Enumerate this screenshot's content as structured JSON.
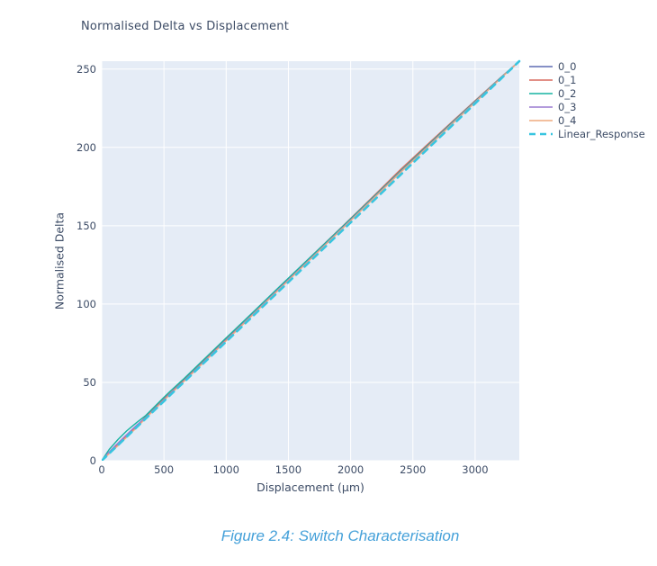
{
  "page": {
    "background": "#ffffff"
  },
  "chart": {
    "title": "Normalised Delta vs Displacement",
    "title_color": "#3d4c66",
    "tick_color": "#3d4c66",
    "plot_bg": "#e5ecf6",
    "grid_color": "#ffffff",
    "xlabel": "Displacement (µm)",
    "ylabel": "Normalised Delta"
  },
  "caption": {
    "text": "Figure 2.4: Switch Characterisation",
    "color": "#44a0d9"
  },
  "chart_data": {
    "type": "line",
    "title": "Normalised Delta vs Displacement",
    "xlabel": "Displacement (µm)",
    "ylabel": "Normalised Delta",
    "xlim": [
      0,
      3355
    ],
    "ylim": [
      0,
      255
    ],
    "xticks": [
      0,
      500,
      1000,
      1500,
      2000,
      2500,
      3000
    ],
    "yticks": [
      0,
      50,
      100,
      150,
      200,
      250
    ],
    "grid": true,
    "legend_position": "top-right-outside",
    "x": [
      0,
      60,
      130,
      200,
      280,
      350,
      500,
      560,
      650,
      800,
      1000,
      1200,
      1400,
      1600,
      1800,
      2000,
      2200,
      2400,
      2600,
      2800,
      3000,
      3200,
      3355
    ],
    "series": [
      {
        "name": "0_0",
        "color": "#5f6bb3",
        "dash": "solid",
        "width": 1.4,
        "values": [
          0,
          5.2,
          10.8,
          16.2,
          22.3,
          27.4,
          39.2,
          43.4,
          50.3,
          61.8,
          77.2,
          92.6,
          108.0,
          123.3,
          138.5,
          153.8,
          169.2,
          184.6,
          199.6,
          214.4,
          229.2,
          243.9,
          255
        ]
      },
      {
        "name": "0_1",
        "color": "#d96a5e",
        "dash": "solid",
        "width": 1.4,
        "values": [
          0,
          4.8,
          10.2,
          15.8,
          22.0,
          27.8,
          39.6,
          43.8,
          50.8,
          62.2,
          77.6,
          93.1,
          108.6,
          124.0,
          139.3,
          154.6,
          170.2,
          185.8,
          200.6,
          215.2,
          229.8,
          244.2,
          255
        ]
      },
      {
        "name": "0_2",
        "color": "#17b3a2",
        "dash": "solid",
        "width": 1.4,
        "values": [
          0,
          7.2,
          13.5,
          19.0,
          24.3,
          28.6,
          40.5,
          45.0,
          51.6,
          63.0,
          78.4,
          93.6,
          108.9,
          124.1,
          139.2,
          154.3,
          169.6,
          184.8,
          199.8,
          214.6,
          229.3,
          244.0,
          255
        ]
      },
      {
        "name": "0_3",
        "color": "#9a7ad1",
        "dash": "solid",
        "width": 1.4,
        "values": [
          0,
          5.6,
          11.2,
          16.6,
          22.6,
          27.2,
          39.0,
          43.5,
          50.1,
          61.6,
          77.0,
          92.4,
          107.8,
          123.1,
          138.3,
          153.6,
          168.9,
          184.2,
          199.2,
          214.1,
          229.0,
          243.8,
          255
        ]
      },
      {
        "name": "0_4",
        "color": "#efaa7f",
        "dash": "solid",
        "width": 1.4,
        "values": [
          0,
          4.5,
          9.6,
          15.0,
          21.0,
          26.8,
          38.6,
          43.0,
          49.8,
          61.2,
          76.6,
          92.0,
          107.4,
          122.7,
          138.0,
          153.2,
          168.6,
          183.9,
          198.9,
          213.8,
          228.7,
          243.6,
          255
        ]
      },
      {
        "name": "Linear_Response",
        "color": "#38c5e0",
        "dash": "dash",
        "width": 2.6,
        "values": [
          0,
          4.6,
          9.9,
          15.2,
          21.3,
          26.6,
          38.0,
          42.6,
          49.4,
          60.8,
          76.0,
          91.2,
          106.4,
          121.6,
          136.8,
          152.0,
          167.2,
          182.4,
          197.6,
          212.8,
          228.0,
          243.2,
          255
        ]
      }
    ]
  }
}
